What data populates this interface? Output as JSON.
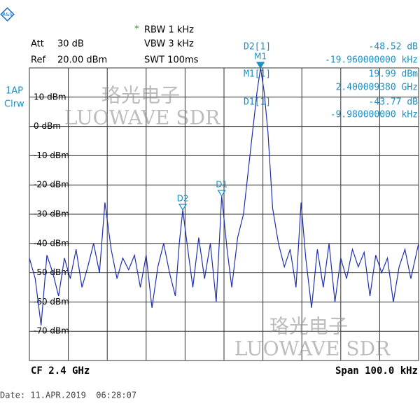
{
  "chart_data": {
    "type": "line",
    "header": {
      "att_label": "Att",
      "att_value": "30 dB",
      "ref_label": "Ref",
      "ref_value": "20.00 dBm",
      "star": "*",
      "rbw": "RBW 1 kHz",
      "vbw": "VBW 3 kHz",
      "swt": "SWT 100ms",
      "trace_mode": "1AP",
      "trace_detector": "Clrw"
    },
    "readouts": [
      {
        "name": "D2[1]",
        "value": "-48.52 dB",
        "freq": "-19.960000000 kHz"
      },
      {
        "name": "M1[1]",
        "value": "19.99 dBm",
        "freq": "2.400009380 GHz"
      },
      {
        "name": "D1[1]",
        "value": "-43.77 dB",
        "freq": "-9.980000000 kHz"
      }
    ],
    "watermarks": [
      "珞光电子",
      "LUOWAVE SDR"
    ],
    "footer": {
      "center": "CF 2.4 GHz",
      "span": "Span 100.0 kHz",
      "date": "Date: 11.APR.2019  06:28:07"
    },
    "xlim": [
      -50,
      50
    ],
    "ylim": [
      -80,
      20
    ],
    "yticks": [
      {
        "value": 10,
        "label": "10 dBm"
      },
      {
        "value": 0,
        "label": "0 dBm"
      },
      {
        "value": -10,
        "label": "-10 dBm"
      },
      {
        "value": -20,
        "label": "-20 dBm"
      },
      {
        "value": -30,
        "label": "-30 dBm"
      },
      {
        "value": -40,
        "label": "-40 dBm"
      },
      {
        "value": -50,
        "label": "-50 dBm"
      },
      {
        "value": -60,
        "label": "-60 dBm"
      },
      {
        "value": -70,
        "label": "-70 dBm"
      }
    ],
    "grid": true,
    "series": [
      {
        "color": "#1f2fb0",
        "x": [
          -50,
          -48.5,
          -47,
          -45.5,
          -44,
          -42.5,
          -41,
          -39.5,
          -38,
          -36.5,
          -35,
          -33.5,
          -32,
          -30.6,
          -29,
          -27.5,
          -26,
          -24.5,
          -23,
          -21.5,
          -20,
          -18.5,
          -17,
          -15.5,
          -14,
          -12.5,
          -11.5,
          -10.6,
          -9.5,
          -8,
          -6.5,
          -5,
          -3.5,
          -2,
          -0.6,
          0.8,
          2,
          3.5,
          5,
          6.5,
          7.5,
          8.5,
          9.38,
          10.3,
          11.3,
          12.5,
          14,
          15.5,
          17,
          18.5,
          19.8,
          21,
          22.5,
          24,
          25.5,
          27,
          28.5,
          30,
          31.5,
          33,
          34.5,
          36,
          37.5,
          39,
          40.5,
          42,
          43.5,
          45,
          46.5,
          48,
          50
        ],
        "values": [
          -45,
          -52,
          -68,
          -44,
          -50,
          -58,
          -45,
          -52,
          -42,
          -55,
          -48,
          -40,
          -50,
          -26,
          -42,
          -52,
          -45,
          -49,
          -44,
          -55,
          -44,
          -62,
          -48,
          -40,
          -50,
          -58,
          -40,
          -28.53,
          -40,
          -55,
          -38,
          -52,
          -40,
          -60,
          -23.78,
          -42,
          -55,
          -38,
          -30,
          -12,
          0,
          12,
          19.99,
          12,
          -2,
          -28,
          -40,
          -48,
          -42,
          -55,
          -26,
          -45,
          -62,
          -42,
          -55,
          -40,
          -60,
          -45,
          -52,
          -42,
          -48,
          -43,
          -58,
          -44,
          -50,
          -45,
          -60,
          -48,
          -42,
          -52,
          -40
        ]
      }
    ],
    "markers": [
      {
        "label": "M1",
        "x": 9.38,
        "y": 19.99
      },
      {
        "label": "D1",
        "x": -0.6,
        "y": -23.78
      },
      {
        "label": "D2",
        "x": -10.6,
        "y": -28.53
      }
    ]
  }
}
